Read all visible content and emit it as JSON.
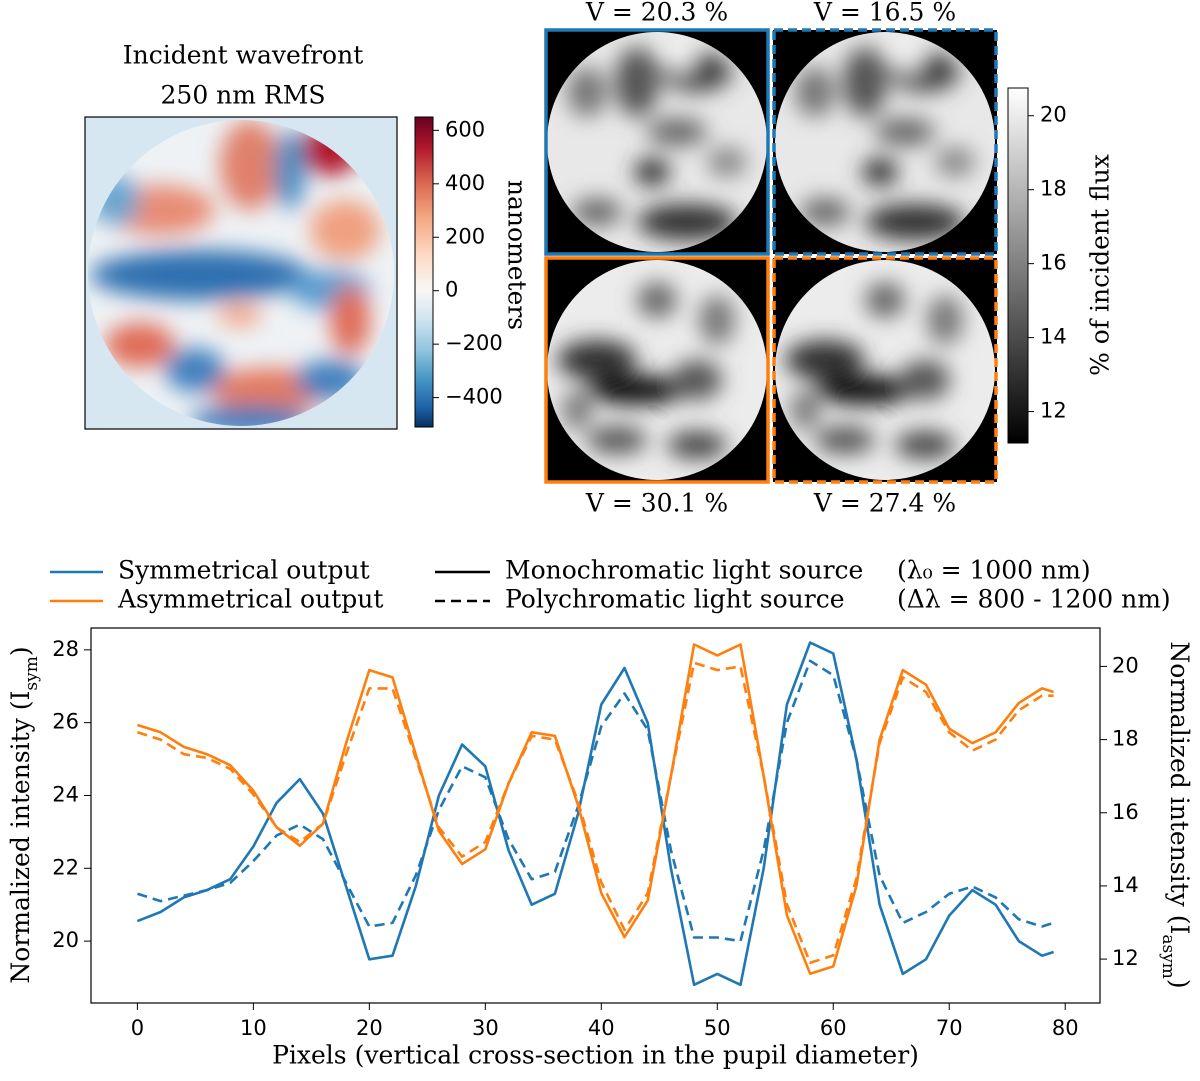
{
  "chart_data": [
    {
      "type": "heatmap",
      "title": [
        "Incident wavefront",
        "250 nm RMS"
      ],
      "colorbar_label": "nanometers",
      "cmap": "RdBu_r",
      "clim": [
        -510,
        650
      ],
      "cticks": [
        600,
        400,
        200,
        0,
        {
          "value": -200,
          "label": "−200"
        },
        {
          "value": -400,
          "label": "−400"
        }
      ]
    },
    {
      "type": "image-grid",
      "colorbar_label": "% of incident flux",
      "cmap": "gray",
      "clim": [
        11.15,
        20.75
      ],
      "cticks": [
        12,
        14,
        16,
        18,
        20
      ],
      "panels": [
        {
          "label": "V = 20.3 %",
          "color": "#1f77b4",
          "dash": false
        },
        {
          "label": "V = 16.5 %",
          "color": "#1f77b4",
          "dash": true
        },
        {
          "label": "V = 30.1 %",
          "color": "#ff7f0e",
          "dash": false
        },
        {
          "label": "V = 27.4 %",
          "color": "#ff7f0e",
          "dash": true
        }
      ]
    },
    {
      "type": "line",
      "xlabel": "Pixels (vertical cross-section in the pupil diameter)",
      "ylabel": [
        "Normalized intensity (I",
        "sym",
        ")"
      ],
      "y2label": [
        "Normalized intensity (I",
        "asym",
        ")"
      ],
      "legend_colors": [
        {
          "name": "Symmetrical output",
          "color": "#1f77b4"
        },
        {
          "name": "Asymmetrical output",
          "color": "#ff7f0e"
        }
      ],
      "legend_styles": [
        {
          "name": "Monochromatic light source",
          "detail": "(λ₀ = 1000 nm)",
          "dash": false
        },
        {
          "name": "Polychromatic light source",
          "detail": "(Δλ = 800 - 1200 nm)",
          "dash": true
        }
      ],
      "xlim": [
        -4,
        83
      ],
      "xticks": [
        0,
        10,
        20,
        30,
        40,
        50,
        60,
        70,
        80
      ],
      "ylim": [
        18.3,
        28.6
      ],
      "yticks": [
        20,
        22,
        24,
        26,
        28
      ],
      "y2lim": [
        10.8,
        21.05
      ],
      "y2ticks": [
        12,
        14,
        16,
        18,
        20
      ],
      "x": [
        0,
        2,
        4,
        6,
        8,
        10,
        12,
        14,
        16,
        18,
        20,
        22,
        24,
        26,
        28,
        30,
        32,
        34,
        36,
        38,
        40,
        42,
        44,
        46,
        48,
        50,
        52,
        54,
        56,
        58,
        60,
        62,
        64,
        66,
        68,
        70,
        72,
        74,
        76,
        78,
        79
      ],
      "series": [
        {
          "color": "#1f77b4",
          "dash": false,
          "axis": "y",
          "values": [
            20.55,
            20.8,
            21.2,
            21.4,
            21.7,
            22.6,
            23.8,
            24.45,
            23.5,
            21.5,
            19.5,
            19.6,
            21.5,
            24.0,
            25.4,
            24.8,
            22.5,
            21.0,
            21.3,
            23.5,
            26.5,
            27.5,
            26.0,
            22.0,
            18.8,
            19.1,
            18.8,
            22.0,
            26.5,
            28.2,
            27.9,
            25.0,
            21.0,
            19.1,
            19.5,
            20.7,
            21.4,
            21.0,
            20.0,
            19.6,
            19.7
          ]
        },
        {
          "color": "#1f77b4",
          "dash": true,
          "axis": "y",
          "values": [
            21.3,
            21.1,
            21.25,
            21.4,
            21.6,
            22.2,
            22.9,
            23.2,
            22.8,
            21.6,
            20.4,
            20.5,
            21.8,
            23.6,
            24.8,
            24.5,
            22.8,
            21.7,
            21.9,
            23.7,
            25.9,
            26.8,
            25.8,
            22.5,
            20.1,
            20.1,
            20.0,
            22.5,
            26.0,
            27.7,
            27.3,
            25.0,
            21.8,
            20.5,
            20.8,
            21.3,
            21.5,
            21.2,
            20.6,
            20.4,
            20.5
          ]
        },
        {
          "color": "#ff7f0e",
          "dash": false,
          "axis": "y2",
          "values": [
            18.4,
            18.2,
            17.8,
            17.6,
            17.3,
            16.6,
            15.6,
            15.1,
            15.7,
            17.9,
            19.9,
            19.7,
            17.6,
            15.5,
            14.6,
            15.0,
            16.8,
            18.2,
            18.1,
            16.2,
            13.8,
            12.6,
            13.6,
            17.0,
            20.6,
            20.3,
            20.6,
            17.0,
            13.2,
            11.6,
            11.8,
            14.0,
            18.0,
            19.9,
            19.5,
            18.3,
            17.9,
            18.2,
            19.0,
            19.4,
            19.3
          ]
        },
        {
          "color": "#ff7f0e",
          "dash": true,
          "axis": "y2",
          "values": [
            18.2,
            18.0,
            17.6,
            17.5,
            17.2,
            16.5,
            15.6,
            15.2,
            15.7,
            17.6,
            19.4,
            19.4,
            17.5,
            15.6,
            14.8,
            15.2,
            16.8,
            18.1,
            18.0,
            16.3,
            14.1,
            12.8,
            13.8,
            17.0,
            20.1,
            19.9,
            20.0,
            17.0,
            13.5,
            11.9,
            12.1,
            14.2,
            17.9,
            19.7,
            19.3,
            18.2,
            17.7,
            18.0,
            18.8,
            19.2,
            19.2
          ]
        }
      ]
    }
  ]
}
